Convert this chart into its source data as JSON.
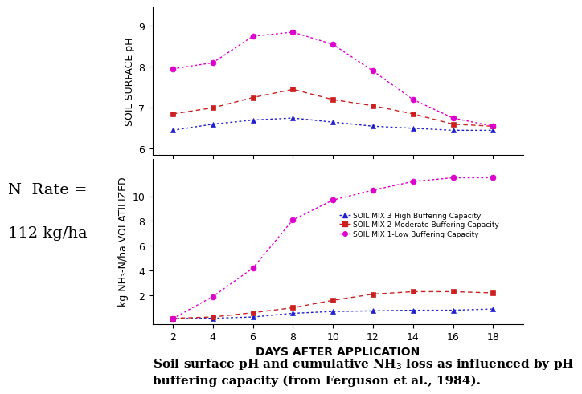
{
  "days": [
    2,
    4,
    6,
    8,
    10,
    12,
    14,
    16,
    18
  ],
  "ph_blue": [
    6.45,
    6.6,
    6.7,
    6.75,
    6.65,
    6.55,
    6.5,
    6.45,
    6.45
  ],
  "ph_red": [
    6.85,
    7.0,
    7.25,
    7.45,
    7.2,
    7.05,
    6.85,
    6.6,
    6.55
  ],
  "ph_magenta": [
    7.95,
    8.1,
    8.75,
    8.85,
    8.55,
    7.9,
    7.2,
    6.75,
    6.55
  ],
  "nh3_blue": [
    0.12,
    0.15,
    0.25,
    0.55,
    0.7,
    0.75,
    0.8,
    0.8,
    0.9
  ],
  "nh3_red": [
    0.15,
    0.25,
    0.6,
    1.0,
    1.6,
    2.1,
    2.3,
    2.3,
    2.2
  ],
  "nh3_magenta": [
    0.12,
    1.9,
    4.2,
    8.1,
    9.7,
    10.5,
    11.2,
    11.5,
    11.5
  ],
  "color_blue": "#2020cc",
  "color_red": "#cc2020",
  "color_magenta": "#dd00cc",
  "ph_ylim": [
    5.85,
    9.45
  ],
  "ph_yticks": [
    6,
    7,
    8,
    9
  ],
  "nh3_ylim": [
    -0.3,
    13.0
  ],
  "nh3_yticks": [
    2,
    4,
    6,
    8,
    10
  ],
  "xlabel": "DAYS AFTER APPLICATION",
  "ylabel_top": "SOIL SURFACE pH",
  "ylabel_bot": "kg NH₃-N/ha VOLATILIZED",
  "legend_labels": [
    "SOIL MIX 3 High Buffering Capacity",
    "SOIL MIX 2-Moderate Buffering Capacity",
    "SOIL MIX 1-Low Buffering Capacity"
  ],
  "nrate_line1": "N  Rate =",
  "nrate_line2": "112 kg/ha",
  "caption": "Soil surface pH and cumulative NH$_3$ loss as influenced by pH\nbuffering capacity (from Ferguson et al., 1984).",
  "tick_fontsize": 9,
  "label_fontsize": 9,
  "caption_fontsize": 11,
  "nrate_fontsize": 14
}
